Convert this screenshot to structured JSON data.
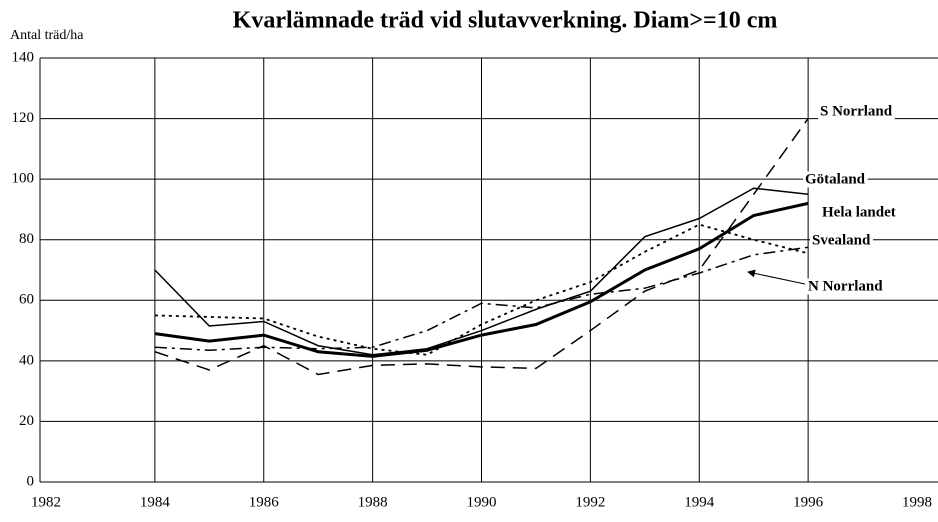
{
  "chart_data": {
    "type": "line",
    "title": "Kvarlämnade träd vid slutavverkning. Diam>=10 cm",
    "y_label": "Antal träd/ha",
    "x": [
      1984,
      1985,
      1986,
      1987,
      1988,
      1989,
      1990,
      1991,
      1992,
      1993,
      1994,
      1995,
      1996
    ],
    "series": [
      {
        "name": "S Norrland",
        "color": "#000000",
        "dash": "14 8",
        "width": 1.5,
        "values": [
          43,
          37,
          45,
          35.5,
          38.5,
          39,
          38,
          37.5,
          50,
          63,
          70,
          95,
          120
        ]
      },
      {
        "name": "Götaland",
        "color": "#000000",
        "dash": "none",
        "width": 1.5,
        "values": [
          70,
          51.5,
          53,
          45,
          42,
          44,
          50,
          57,
          63,
          81,
          87,
          97,
          95
        ]
      },
      {
        "name": "Hela landet",
        "color": "#000000",
        "dash": "none",
        "width": 3,
        "values": [
          49,
          46.5,
          48.5,
          43,
          41.5,
          43.5,
          48.5,
          52,
          59.5,
          70,
          77,
          88,
          92
        ]
      },
      {
        "name": "Svealand",
        "color": "#000000",
        "dash": "12 5 3 5",
        "width": 1.5,
        "values": [
          44.5,
          43.5,
          44.5,
          44,
          44.5,
          50,
          59,
          57.5,
          62,
          64,
          69,
          75,
          77.5
        ]
      },
      {
        "name": "N Norrland",
        "color": "#000000",
        "dash": "3 4",
        "width": 1.8,
        "values": [
          55,
          54.5,
          54,
          48,
          44,
          42,
          52,
          60,
          66,
          76,
          85,
          80,
          75.5
        ]
      }
    ],
    "xlim": [
      1982,
      1998
    ],
    "xticks": [
      1982,
      1984,
      1986,
      1988,
      1990,
      1992,
      1994,
      1996,
      1998
    ],
    "ylim": [
      0,
      140
    ],
    "yticks": [
      0,
      20,
      40,
      60,
      80,
      100,
      120,
      140
    ],
    "grid": true
  }
}
